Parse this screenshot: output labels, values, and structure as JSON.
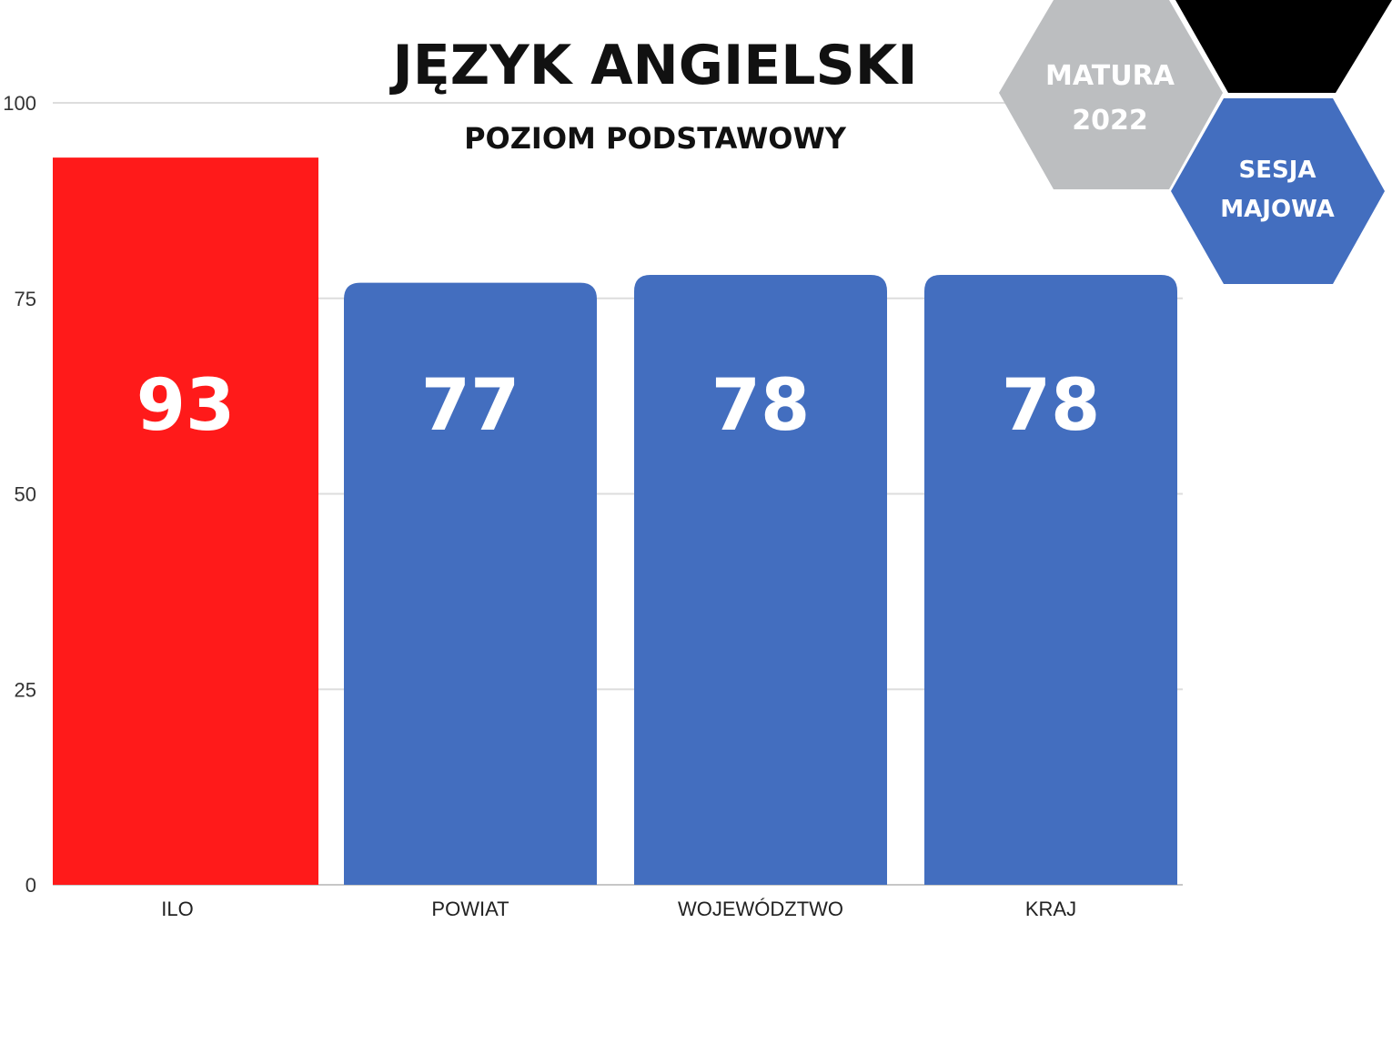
{
  "chart_data": {
    "type": "bar",
    "title": "JĘZYK ANGIELSKI",
    "subtitle": "POZIOM PODSTAWOWY",
    "categories": [
      "ILO",
      "POWIAT",
      "WOJEWÓDZTWO",
      "KRAJ"
    ],
    "values": [
      93,
      77,
      78,
      78
    ],
    "data_labels": [
      "93",
      "77",
      "78",
      "78"
    ],
    "bar_colors": [
      "#ff1a1a",
      "#436ebf",
      "#436ebf",
      "#436ebf"
    ],
    "ylim": [
      0,
      100
    ],
    "yticks": [
      0,
      25,
      50,
      75,
      100
    ],
    "ytick_labels": [
      "0",
      "25",
      "50",
      "75",
      "100"
    ],
    "grid": true,
    "xlabel": "",
    "ylabel": ""
  },
  "badges": {
    "matura_line1": "MATURA",
    "matura_line2": "2022",
    "session_line1": "SESJA",
    "session_line2": "MAJOWA"
  },
  "colors": {
    "highlight": "#ff1a1a",
    "bar": "#436ebf",
    "hex_gray": "#bcbec0",
    "hex_black": "#000000",
    "hex_blue": "#436ebf",
    "grid": "#dddddd",
    "axis": "#c7c7c7"
  }
}
